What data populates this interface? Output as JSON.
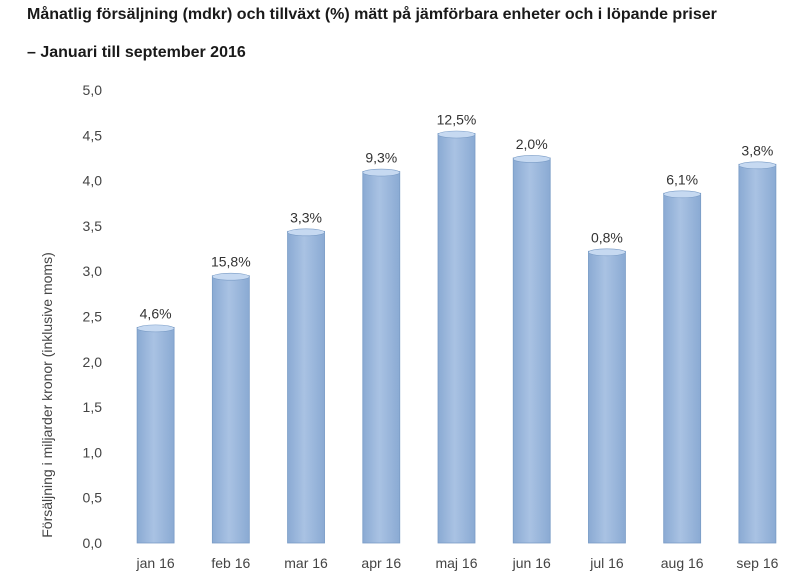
{
  "chart_data": {
    "type": "bar",
    "title": "Månatlig försäljning (mdkr) och tillväxt (%) mätt på jämförbara enheter och i löpande priser",
    "subtitle": "– Januari till september 2016",
    "xlabel": "",
    "ylabel": "Försäljning i miljarder kronor (inklusive moms)",
    "ylim": [
      0,
      5
    ],
    "yticks": [
      "0,0",
      "0,5",
      "1,0",
      "1,5",
      "2,0",
      "2,5",
      "3,0",
      "3,5",
      "4,0",
      "4,5",
      "5,0"
    ],
    "categories": [
      "jan 16",
      "feb 16",
      "mar 16",
      "apr 16",
      "maj 16",
      "jun 16",
      "jul 16",
      "aug 16",
      "sep 16"
    ],
    "values": [
      2.38,
      2.95,
      3.44,
      4.1,
      4.52,
      4.25,
      3.22,
      3.86,
      4.18
    ],
    "data_labels": [
      "4,6%",
      "15,8%",
      "3,3%",
      "9,3%",
      "12,5%",
      "2,0%",
      "0,8%",
      "6,1%",
      "3,8%"
    ],
    "grid": false,
    "legend": "none",
    "colors": {
      "bar": "#95B3D7",
      "bar_edge": "#7A9CC6",
      "bar_top": "#C6D9F1"
    }
  }
}
